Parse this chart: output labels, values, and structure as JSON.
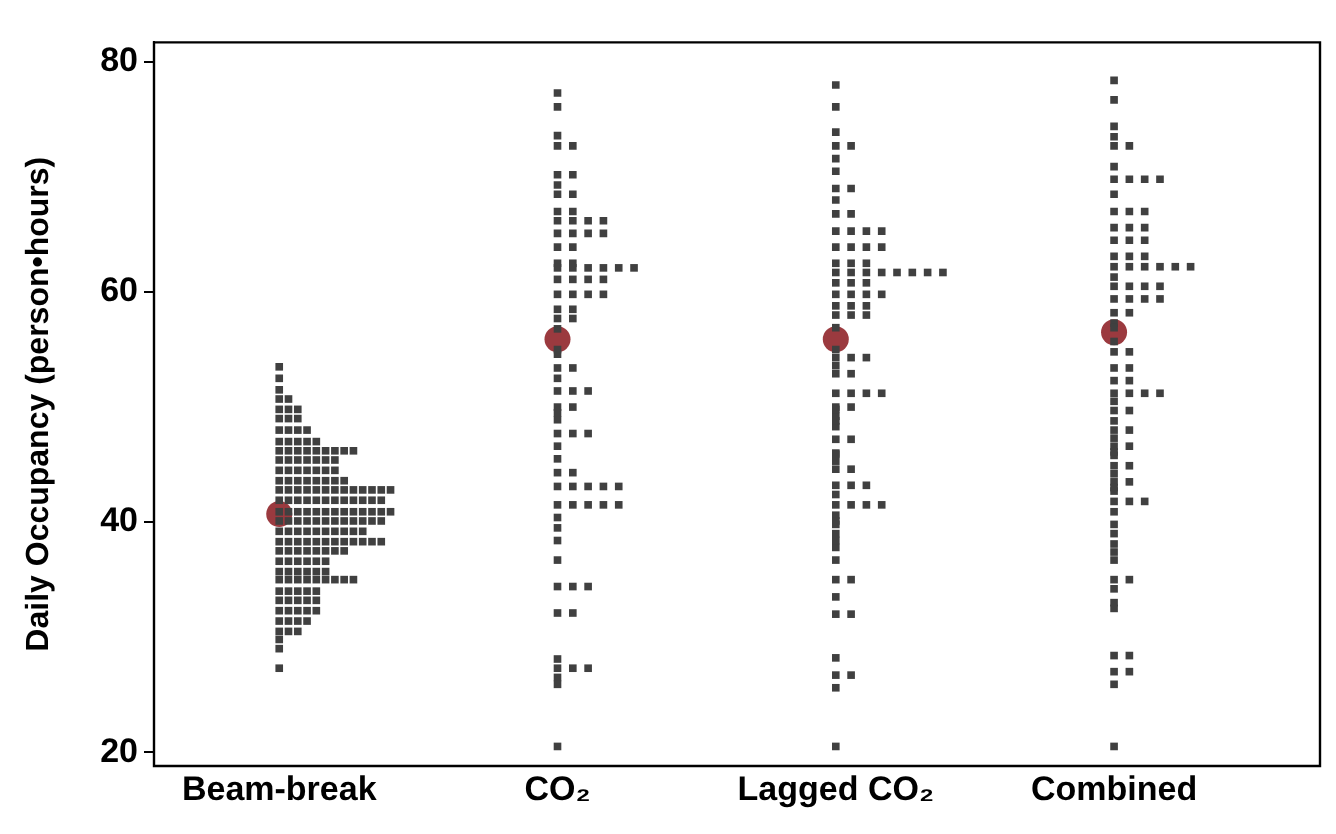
{
  "chart_data": {
    "type": "scatter",
    "ylabel": "Daily Occupancy (person•hours)",
    "categories": [
      "Beam-break",
      "CO₂",
      "Lagged CO₂",
      "Combined"
    ],
    "ylim": [
      18.8,
      81.7
    ],
    "yticks": [
      20,
      40,
      60,
      80
    ],
    "grid": false,
    "legend": false,
    "series": [
      {
        "color": "#404040",
        "marker": "square",
        "x": [
          "Beam-break",
          "Beam-break",
          "Beam-break",
          "Beam-break",
          "Beam-break",
          "Beam-break",
          "Beam-break",
          "Beam-break",
          "Beam-break",
          "Beam-break",
          "Beam-break",
          "Beam-break",
          "Beam-break",
          "Beam-break",
          "Beam-break",
          "Beam-break",
          "Beam-break",
          "Beam-break",
          "Beam-break",
          "Beam-break",
          "Beam-break",
          "Beam-break",
          "Beam-break",
          "Beam-break",
          "Beam-break",
          "Beam-break",
          "Beam-break",
          "Beam-break",
          "Beam-break",
          "Beam-break",
          "Beam-break",
          "Beam-break",
          "Beam-break",
          "Beam-break",
          "Beam-break",
          "Beam-break",
          "Beam-break",
          "Beam-break",
          "Beam-break",
          "Beam-break",
          "Beam-break",
          "Beam-break",
          "Beam-break",
          "Beam-break",
          "Beam-break",
          "Beam-break",
          "Beam-break",
          "Beam-break",
          "Beam-break",
          "Beam-break",
          "Beam-break",
          "Beam-break",
          "Beam-break",
          "Beam-break",
          "Beam-break",
          "Beam-break",
          "Beam-break",
          "Beam-break",
          "Beam-break",
          "Beam-break",
          "Beam-break",
          "Beam-break",
          "Beam-break",
          "Beam-break",
          "Beam-break",
          "Beam-break",
          "Beam-break",
          "Beam-break",
          "Beam-break",
          "Beam-break",
          "Beam-break",
          "Beam-break",
          "Beam-break",
          "Beam-break",
          "Beam-break",
          "Beam-break",
          "Beam-break",
          "Beam-break",
          "Beam-break",
          "Beam-break",
          "Beam-break",
          "Beam-break",
          "Beam-break",
          "Beam-break",
          "Beam-break",
          "Beam-break",
          "Beam-break",
          "Beam-break",
          "Beam-break",
          "Beam-break",
          "Beam-break",
          "Beam-break",
          "Beam-break",
          "Beam-break",
          "Beam-break",
          "Beam-break",
          "Beam-break",
          "Beam-break",
          "Beam-break",
          "Beam-break",
          "Beam-break",
          "Beam-break",
          "Beam-break",
          "Beam-break",
          "Beam-break",
          "Beam-break",
          "Beam-break",
          "Beam-break",
          "Beam-break",
          "Beam-break",
          "Beam-break",
          "Beam-break",
          "Beam-break",
          "Beam-break",
          "Beam-break",
          "Beam-break",
          "Beam-break",
          "Beam-break",
          "Beam-break",
          "Beam-break",
          "Beam-break",
          "Beam-break",
          "Beam-break",
          "Beam-break",
          "Beam-break",
          "Beam-break",
          "Beam-break",
          "Beam-break",
          "Beam-break",
          "Beam-break",
          "Beam-break",
          "Beam-break",
          "Beam-break",
          "Beam-break",
          "Beam-break",
          "Beam-break",
          "Beam-break",
          "Beam-break",
          "Beam-break",
          "Beam-break",
          "Beam-break",
          "Beam-break",
          "Beam-break",
          "Beam-break",
          "Beam-break",
          "Beam-break",
          "Beam-break",
          "Beam-break",
          "Beam-break",
          "Beam-break",
          "Beam-break",
          "Beam-break",
          "Beam-break",
          "Beam-break",
          "Beam-break",
          "Beam-break",
          "Beam-break",
          "Beam-break",
          "Beam-break",
          "Beam-break",
          "Beam-break",
          "Beam-break",
          "Beam-break",
          "Beam-break",
          "Beam-break",
          "Beam-break",
          "Beam-break",
          "Beam-break",
          "Beam-break",
          "Beam-break",
          "Beam-break",
          "Beam-break",
          "Beam-break",
          "Beam-break",
          "Beam-break",
          "Beam-break",
          "Beam-break"
        ],
        "values": [
          53.5,
          52.5,
          51.5,
          50.7,
          50.7,
          49.8,
          49.8,
          49.8,
          49,
          49,
          49,
          48,
          48,
          48,
          48,
          47,
          47,
          47,
          47,
          47,
          46.2,
          46.2,
          46.2,
          46.2,
          46.2,
          46.2,
          46.2,
          46.2,
          46.2,
          45.4,
          45.4,
          45.4,
          45.4,
          45.4,
          45.4,
          45.4,
          44.5,
          44.5,
          44.5,
          44.5,
          44.5,
          44.5,
          44.5,
          43.6,
          43.6,
          43.6,
          43.6,
          43.6,
          43.6,
          43.6,
          43.6,
          42.8,
          42.8,
          42.8,
          42.8,
          42.8,
          42.8,
          42.8,
          42.8,
          42.8,
          42.8,
          42.8,
          42.8,
          42.8,
          41.9,
          41.9,
          41.9,
          41.9,
          41.9,
          41.9,
          41.9,
          41.9,
          41.9,
          41.9,
          41.9,
          41.9,
          40.9,
          40.9,
          40.9,
          40.9,
          40.9,
          40.9,
          40.9,
          40.9,
          40.9,
          40.9,
          40.9,
          40.9,
          40.9,
          40.1,
          40.1,
          40.1,
          40.1,
          40.1,
          40.1,
          40.1,
          40.1,
          40.1,
          40.1,
          40.1,
          40.1,
          39.2,
          39.2,
          39.2,
          39.2,
          39.2,
          39.2,
          39.2,
          39.2,
          39.2,
          39.2,
          38.3,
          38.3,
          38.3,
          38.3,
          38.3,
          38.3,
          38.3,
          38.3,
          38.3,
          38.3,
          38.3,
          38.3,
          37.5,
          37.5,
          37.5,
          37.5,
          37.5,
          37.5,
          37.5,
          37.5,
          36.6,
          36.6,
          36.6,
          36.6,
          36.6,
          36.6,
          35.7,
          35.7,
          35.7,
          35.7,
          35.7,
          35.7,
          35,
          35,
          35,
          35,
          35,
          35,
          35,
          35,
          35,
          34,
          34,
          34,
          34,
          34,
          33.2,
          33.2,
          33.2,
          33.2,
          33.2,
          32.3,
          32.3,
          32.3,
          32.3,
          32.3,
          31.4,
          31.4,
          31.4,
          31.4,
          30.5,
          30.5,
          30.5,
          29.8,
          29,
          27.3
        ]
      },
      {
        "color": "#404040",
        "marker": "square",
        "x": [
          "CO₂",
          "CO₂",
          "CO₂",
          "CO₂",
          "CO₂",
          "CO₂",
          "CO₂",
          "CO₂",
          "CO₂",
          "CO₂",
          "CO₂",
          "CO₂",
          "CO₂",
          "CO₂",
          "CO₂",
          "CO₂",
          "CO₂",
          "CO₂",
          "CO₂",
          "CO₂",
          "CO₂",
          "CO₂",
          "CO₂",
          "CO₂",
          "CO₂",
          "CO₂",
          "CO₂",
          "CO₂",
          "CO₂",
          "CO₂",
          "CO₂",
          "CO₂",
          "CO₂",
          "CO₂",
          "CO₂",
          "CO₂",
          "CO₂",
          "CO₂",
          "CO₂",
          "CO₂",
          "CO₂",
          "CO₂",
          "CO₂",
          "CO₂",
          "CO₂",
          "CO₂",
          "CO₂",
          "CO₂",
          "CO₂",
          "CO₂",
          "CO₂",
          "CO₂",
          "CO₂",
          "CO₂",
          "CO₂",
          "CO₂",
          "CO₂",
          "CO₂",
          "CO₂",
          "CO₂",
          "CO₂",
          "CO₂",
          "CO₂",
          "CO₂",
          "CO₂",
          "CO₂",
          "CO₂",
          "CO₂",
          "CO₂",
          "CO₂",
          "CO₂",
          "CO₂",
          "CO₂",
          "CO₂",
          "CO₂",
          "CO₂",
          "CO₂",
          "CO₂",
          "CO₂",
          "CO₂",
          "CO₂",
          "CO₂",
          "CO₂",
          "CO₂",
          "CO₂",
          "CO₂",
          "CO₂",
          "CO₂"
        ],
        "values": [
          77.3,
          76.1,
          73.6,
          72.7,
          72.7,
          70.2,
          70.2,
          69.3,
          68.5,
          68.5,
          67,
          67,
          66.2,
          66.2,
          66.2,
          66.2,
          65.1,
          65.1,
          65.1,
          65.1,
          63.9,
          63.9,
          62.5,
          62.5,
          62.1,
          62.1,
          62.1,
          62.1,
          62.1,
          62.1,
          61.1,
          61.1,
          61.1,
          61.1,
          59.8,
          59.8,
          59.8,
          59.8,
          58.5,
          58.5,
          57.7,
          57.7,
          54.6,
          53.4,
          53.4,
          52.5,
          51.4,
          51.4,
          51.4,
          50,
          50,
          48.9,
          47.7,
          47.7,
          47.7,
          46.6,
          45.5,
          44.3,
          44.3,
          43.1,
          43.1,
          43.1,
          43.1,
          43.1,
          41.5,
          41.5,
          41.5,
          41.5,
          41.5,
          40.4,
          39.5,
          38.4,
          36.7,
          34.4,
          34.4,
          34.4,
          32.1,
          32.1,
          28.1,
          27.3,
          27.3,
          27.3,
          26.5,
          25.9,
          20.5,
          56.8,
          55,
          49.5
        ]
      },
      {
        "color": "#404040",
        "marker": "square",
        "x": [
          "Lagged CO₂",
          "Lagged CO₂",
          "Lagged CO₂",
          "Lagged CO₂",
          "Lagged CO₂",
          "Lagged CO₂",
          "Lagged CO₂",
          "Lagged CO₂",
          "Lagged CO₂",
          "Lagged CO₂",
          "Lagged CO₂",
          "Lagged CO₂",
          "Lagged CO₂",
          "Lagged CO₂",
          "Lagged CO₂",
          "Lagged CO₂",
          "Lagged CO₂",
          "Lagged CO₂",
          "Lagged CO₂",
          "Lagged CO₂",
          "Lagged CO₂",
          "Lagged CO₂",
          "Lagged CO₂",
          "Lagged CO₂",
          "Lagged CO₂",
          "Lagged CO₂",
          "Lagged CO₂",
          "Lagged CO₂",
          "Lagged CO₂",
          "Lagged CO₂",
          "Lagged CO₂",
          "Lagged CO₂",
          "Lagged CO₂",
          "Lagged CO₂",
          "Lagged CO₂",
          "Lagged CO₂",
          "Lagged CO₂",
          "Lagged CO₂",
          "Lagged CO₂",
          "Lagged CO₂",
          "Lagged CO₂",
          "Lagged CO₂",
          "Lagged CO₂",
          "Lagged CO₂",
          "Lagged CO₂",
          "Lagged CO₂",
          "Lagged CO₂",
          "Lagged CO₂",
          "Lagged CO₂",
          "Lagged CO₂",
          "Lagged CO₂",
          "Lagged CO₂",
          "Lagged CO₂",
          "Lagged CO₂",
          "Lagged CO₂",
          "Lagged CO₂",
          "Lagged CO₂",
          "Lagged CO₂",
          "Lagged CO₂",
          "Lagged CO₂",
          "Lagged CO₂",
          "Lagged CO₂",
          "Lagged CO₂",
          "Lagged CO₂",
          "Lagged CO₂",
          "Lagged CO₂",
          "Lagged CO₂",
          "Lagged CO₂",
          "Lagged CO₂",
          "Lagged CO₂",
          "Lagged CO₂",
          "Lagged CO₂",
          "Lagged CO₂",
          "Lagged CO₂",
          "Lagged CO₂",
          "Lagged CO₂",
          "Lagged CO₂",
          "Lagged CO₂",
          "Lagged CO₂",
          "Lagged CO₂",
          "Lagged CO₂",
          "Lagged CO₂",
          "Lagged CO₂",
          "Lagged CO₂",
          "Lagged CO₂",
          "Lagged CO₂",
          "Lagged CO₂",
          "Lagged CO₂",
          "Lagged CO₂",
          "Lagged CO₂",
          "Lagged CO₂",
          "Lagged CO₂",
          "Lagged CO₂",
          "Lagged CO₂"
        ],
        "values": [
          78,
          76.1,
          73.9,
          72.7,
          72.7,
          71.6,
          70.5,
          69,
          69,
          68,
          66.8,
          66.8,
          65.3,
          65.3,
          65.3,
          65.3,
          63.9,
          63.9,
          63.9,
          63.9,
          62.5,
          62.5,
          62.5,
          61.7,
          61.7,
          61.7,
          61.7,
          61.7,
          61.7,
          61.7,
          61.7,
          60.8,
          60.8,
          60.8,
          59.8,
          59.8,
          59.8,
          59.8,
          58.8,
          58.8,
          58.8,
          58,
          58,
          58,
          56.9,
          54.3,
          54.3,
          54.3,
          52.9,
          52.9,
          51.2,
          51.2,
          51.2,
          51.2,
          50,
          50,
          49.2,
          48.3,
          47.2,
          47.2,
          46,
          45.3,
          44.6,
          44.6,
          43.2,
          43.2,
          43.2,
          41.5,
          41.5,
          41.5,
          41.5,
          40.6,
          39.8,
          39,
          37.8,
          36.7,
          35,
          35,
          33.5,
          32,
          32,
          28.2,
          26.7,
          26.7,
          25.6,
          20.5,
          55,
          53.6,
          49.8,
          48.8,
          45.9,
          42.4,
          40.1,
          38.4
        ]
      },
      {
        "color": "#404040",
        "marker": "square",
        "x": [
          "Combined",
          "Combined",
          "Combined",
          "Combined",
          "Combined",
          "Combined",
          "Combined",
          "Combined",
          "Combined",
          "Combined",
          "Combined",
          "Combined",
          "Combined",
          "Combined",
          "Combined",
          "Combined",
          "Combined",
          "Combined",
          "Combined",
          "Combined",
          "Combined",
          "Combined",
          "Combined",
          "Combined",
          "Combined",
          "Combined",
          "Combined",
          "Combined",
          "Combined",
          "Combined",
          "Combined",
          "Combined",
          "Combined",
          "Combined",
          "Combined",
          "Combined",
          "Combined",
          "Combined",
          "Combined",
          "Combined",
          "Combined",
          "Combined",
          "Combined",
          "Combined",
          "Combined",
          "Combined",
          "Combined",
          "Combined",
          "Combined",
          "Combined",
          "Combined",
          "Combined",
          "Combined",
          "Combined",
          "Combined",
          "Combined",
          "Combined",
          "Combined",
          "Combined",
          "Combined",
          "Combined",
          "Combined",
          "Combined",
          "Combined",
          "Combined",
          "Combined",
          "Combined",
          "Combined",
          "Combined",
          "Combined",
          "Combined",
          "Combined",
          "Combined",
          "Combined",
          "Combined",
          "Combined",
          "Combined",
          "Combined",
          "Combined",
          "Combined",
          "Combined",
          "Combined",
          "Combined",
          "Combined",
          "Combined",
          "Combined",
          "Combined",
          "Combined",
          "Combined",
          "Combined",
          "Combined",
          "Combined"
        ],
        "values": [
          78.4,
          76.7,
          74.4,
          73.5,
          72.7,
          72.7,
          70.9,
          69.8,
          69.8,
          69.8,
          69.8,
          68.5,
          67,
          67,
          67,
          65.6,
          65.6,
          65.6,
          64.5,
          64.5,
          64.5,
          63.1,
          63.1,
          63.1,
          62.2,
          62.2,
          62.2,
          62.2,
          62.2,
          62.2,
          61.3,
          60.5,
          60.5,
          60.5,
          60.5,
          59.4,
          59.4,
          59.4,
          59.4,
          58.2,
          58.2,
          57.3,
          55.7,
          54.8,
          54.8,
          53.4,
          53.4,
          52.3,
          52.3,
          51.2,
          51.2,
          51.2,
          51.2,
          49.7,
          49.7,
          48.8,
          48,
          48,
          47.3,
          46.6,
          46.6,
          45.8,
          44.9,
          44.9,
          44.2,
          43.5,
          43.5,
          42.7,
          41.8,
          41.8,
          41.8,
          40.9,
          39.8,
          39,
          38.1,
          36.7,
          35,
          35,
          34.2,
          33,
          32.5,
          28.4,
          28.4,
          27,
          27,
          25.9,
          20.5,
          56.9,
          50.5,
          46.1,
          43,
          37.4
        ]
      },
      {
        "color": "#9b3a3f",
        "marker": "circle",
        "x": [
          "Beam-break",
          "CO₂",
          "Lagged CO₂",
          "Combined"
        ],
        "values": [
          40.7,
          55.9,
          55.9,
          56.5
        ]
      }
    ]
  }
}
